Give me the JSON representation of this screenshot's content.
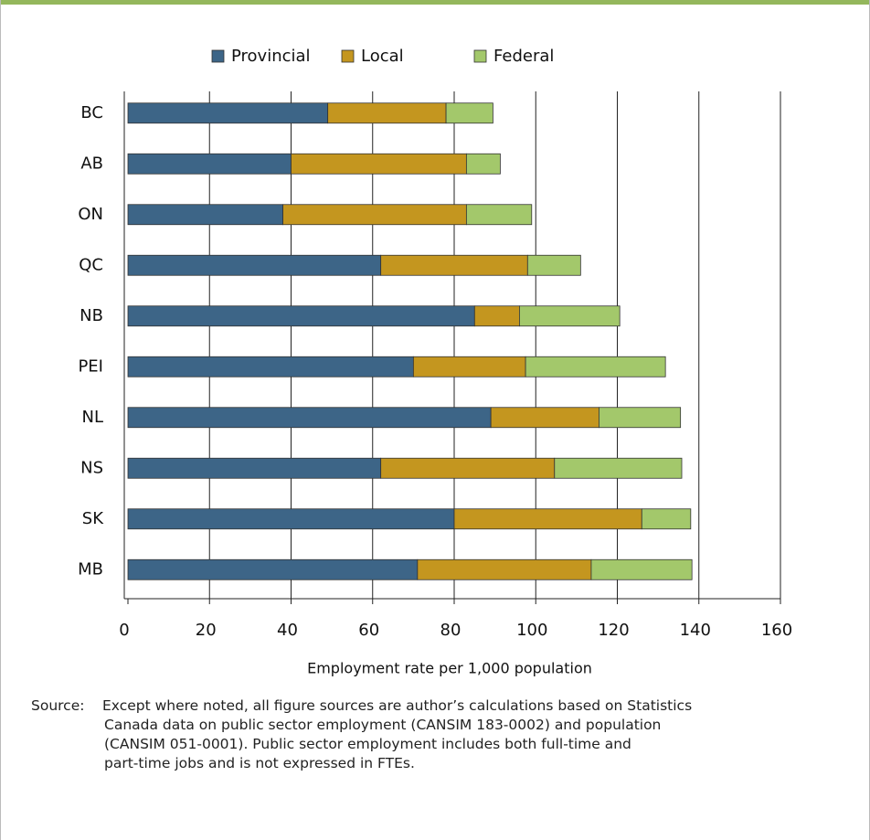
{
  "chart_data": {
    "type": "stacked-bar-horizontal",
    "categories": [
      "BC",
      "AB",
      "ON",
      "QC",
      "NB",
      "PEI",
      "NL",
      "NS",
      "SK",
      "MB"
    ],
    "series": [
      {
        "name": "Provincial",
        "color": "#3d6587",
        "values": [
          49,
          40,
          38,
          62,
          85,
          70,
          89,
          62,
          80,
          71
        ]
      },
      {
        "name": "Local",
        "color": "#c4961f",
        "values": [
          29,
          43,
          45,
          36,
          11,
          27.5,
          26.5,
          42.6,
          46,
          42.6
        ]
      },
      {
        "name": "Federal",
        "color": "#a3c86b",
        "values": [
          11.5,
          8.3,
          16,
          13,
          24.6,
          34.3,
          20,
          31.2,
          12,
          24.7
        ]
      }
    ],
    "xlabel": "Employment rate per 1,000 population",
    "xlim": [
      0,
      160
    ],
    "xticks": [
      0,
      20,
      40,
      60,
      80,
      100,
      120,
      140,
      160
    ],
    "grid": true
  },
  "source": {
    "label": "Source:",
    "lines": [
      "Except where noted, all figure sources are author’s calculations based on Statistics",
      "Canada data on public sector employment (CANSIM 183-0002) and population",
      "(CANSIM 051-0001). Public sector employment includes both full-time and",
      "part-time jobs and is not expressed in FTEs."
    ]
  }
}
